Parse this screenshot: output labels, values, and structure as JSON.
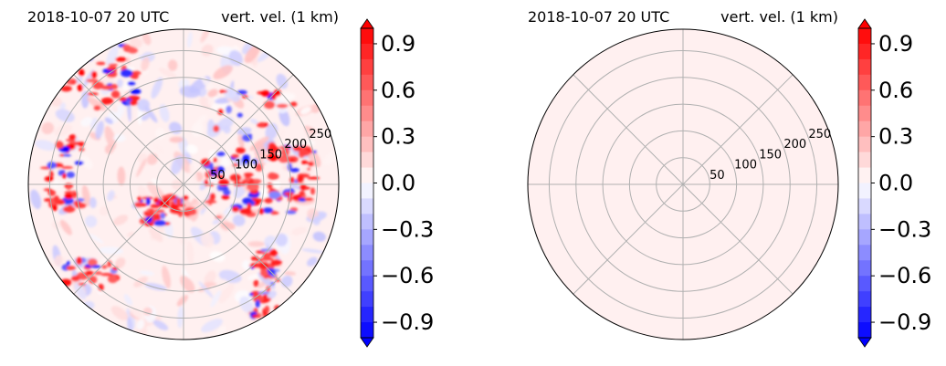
{
  "colors": {
    "time_text": "#0000ff",
    "grid": "#b0b0b0",
    "frame": "#000000",
    "background_near_zero": "#fff0f0",
    "positive": "#ff0000",
    "negative": "#0000ff"
  },
  "chart_data": [
    {
      "type": "heatmap",
      "projection": "polar",
      "time_label": "2018-10-07 20 UTC",
      "field_label": "vert. vel. (1 km)",
      "radial_ticks": [
        50,
        100,
        150,
        200,
        250
      ],
      "rlim": [
        0,
        290
      ],
      "angular_grid_deg": [
        0,
        45,
        90,
        135,
        180,
        225,
        270,
        315
      ],
      "grid": true,
      "field_description": "mixed positive/negative vertical velocity cells",
      "colorbar": {
        "ticks": [
          "0.9",
          "0.6",
          "0.3",
          "0.0",
          "−0.3",
          "−0.6",
          "−0.9"
        ],
        "tick_values": [
          0.9,
          0.6,
          0.3,
          0.0,
          -0.3,
          -0.6,
          -0.9
        ],
        "vmin": -1.0,
        "vmax": 1.0,
        "extend": "both",
        "cmap": "bwr"
      }
    },
    {
      "type": "heatmap",
      "projection": "polar",
      "time_label": "2018-10-07 20 UTC",
      "field_label": "vert. vel. (1 km)",
      "radial_ticks": [
        50,
        100,
        150,
        200,
        250
      ],
      "rlim": [
        0,
        290
      ],
      "angular_grid_deg": [
        0,
        45,
        90,
        135,
        180,
        225,
        270,
        315
      ],
      "grid": true,
      "field_description": "uniform near-zero (slightly positive) field",
      "colorbar": {
        "ticks": [
          "0.9",
          "0.6",
          "0.3",
          "0.0",
          "−0.3",
          "−0.6",
          "−0.9"
        ],
        "tick_values": [
          0.9,
          0.6,
          0.3,
          0.0,
          -0.3,
          -0.6,
          -0.9
        ],
        "vmin": -1.0,
        "vmax": 1.0,
        "extend": "both",
        "cmap": "bwr"
      }
    }
  ]
}
